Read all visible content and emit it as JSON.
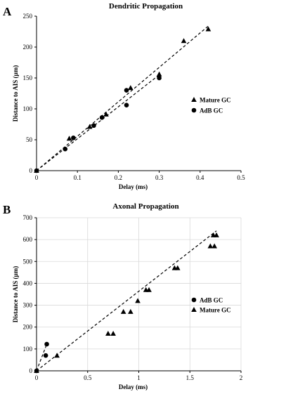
{
  "chart_data": [
    {
      "panel_label": "A",
      "type": "scatter",
      "title": "Dendritic Propagation",
      "xlabel": "Delay (ms)",
      "ylabel": "Distance to AIS (µm)",
      "xlim": [
        0,
        0.5
      ],
      "ylim": [
        0,
        250
      ],
      "xticks": [
        "0",
        "0.1",
        "0.2",
        "0.3",
        "0.4",
        "0.5"
      ],
      "yticks": [
        "0",
        "50",
        "100",
        "150",
        "200",
        "250"
      ],
      "grid": false,
      "legend_position": "right",
      "series": [
        {
          "name": "Mature GC",
          "marker": "triangle",
          "points": [
            [
              0,
              0
            ],
            [
              0.08,
              52
            ],
            [
              0.13,
              71
            ],
            [
              0.17,
              91
            ],
            [
              0.23,
              134
            ],
            [
              0.3,
              156
            ],
            [
              0.36,
              210
            ],
            [
              0.42,
              229
            ]
          ],
          "trendline": [
            [
              0,
              0
            ],
            [
              0.42,
              234
            ]
          ]
        },
        {
          "name": "AdB GC",
          "marker": "circle",
          "points": [
            [
              0,
              0
            ],
            [
              0.07,
              35
            ],
            [
              0.09,
              53
            ],
            [
              0.14,
              73
            ],
            [
              0.16,
              86
            ],
            [
              0.22,
              130
            ],
            [
              0.22,
              106
            ],
            [
              0.3,
              150
            ]
          ],
          "trendline": [
            [
              0,
              0
            ],
            [
              0.3,
              155
            ]
          ]
        }
      ]
    },
    {
      "panel_label": "B",
      "type": "scatter",
      "title": "Axonal Propagation",
      "xlabel": "Delay (ms)",
      "ylabel": "Distance to AIS (µm)",
      "xlim": [
        0,
        2
      ],
      "ylim": [
        0,
        700
      ],
      "xticks": [
        "0",
        "0.5",
        "1",
        "1.5",
        "2"
      ],
      "yticks": [
        "0",
        "100",
        "200",
        "300",
        "400",
        "500",
        "600",
        "700"
      ],
      "grid": true,
      "legend_position": "right",
      "series": [
        {
          "name": "AdB GC",
          "marker": "circle",
          "points": [
            [
              0,
              0
            ],
            [
              0.09,
              70
            ],
            [
              0.1,
              122
            ]
          ],
          "trendline": [
            [
              0,
              0
            ],
            [
              0.1,
              122
            ]
          ]
        },
        {
          "name": "Mature GC",
          "marker": "triangle",
          "points": [
            [
              0,
              0
            ],
            [
              0.2,
              70
            ],
            [
              0.7,
              170
            ],
            [
              0.75,
              170
            ],
            [
              0.85,
              270
            ],
            [
              0.92,
              270
            ],
            [
              0.99,
              320
            ],
            [
              1.07,
              370
            ],
            [
              1.1,
              370
            ],
            [
              1.35,
              470
            ],
            [
              1.38,
              470
            ],
            [
              1.7,
              570
            ],
            [
              1.74,
              570
            ],
            [
              1.73,
              620
            ],
            [
              1.76,
              620
            ]
          ],
          "trendline": [
            [
              0,
              0
            ],
            [
              1.76,
              640
            ]
          ]
        }
      ]
    }
  ]
}
